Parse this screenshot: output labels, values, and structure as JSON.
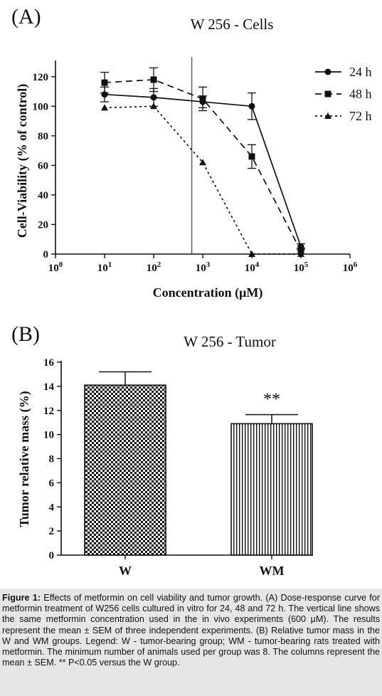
{
  "panelA": {
    "panel_label": "(A)",
    "title": "W 256 - Cells",
    "ylabel": "Cell-Viability (% of control)",
    "xlabel": "Concentration (μM)"
  },
  "panelB": {
    "panel_label": "(B)",
    "title": "W 256 - Tumor",
    "ylabel": "Tumor relative mass (%)",
    "significance": "**"
  },
  "caption": {
    "label": "Figure 1:",
    "text": "Effects of metformin on cell viability and tumor growth. (A) Dose-response curve for metformin treatment of W256 cells cultured in vitro for 24, 48 and 72 h. The vertical line shows the same metformin concentration used in the in vivo experiments (600 μM). The results represent the mean ± SEM of three independent experiments. (B) Relative tumor mass in the W and WM groups. Legend: W - tumor-bearing group; WM - tumor-bearing rats treated with metformin. The minimum number of animals used per group was 8. The columns represent the mean ± SEM. ** P<0.05 versus the W group."
  },
  "chart_data": [
    {
      "type": "line",
      "title": "W 256 - Cells",
      "xlabel": "Concentration (μM)",
      "ylabel": "Cell-Viability (% of control)",
      "x_scale": "log",
      "xlim": [
        1,
        1000000
      ],
      "ylim": [
        0,
        130
      ],
      "xticks": [
        {
          "value": 1,
          "base": "10",
          "exp": "0"
        },
        {
          "value": 10,
          "base": "10",
          "exp": "1"
        },
        {
          "value": 100,
          "base": "10",
          "exp": "2"
        },
        {
          "value": 1000,
          "base": "10",
          "exp": "3"
        },
        {
          "value": 10000,
          "base": "10",
          "exp": "4"
        },
        {
          "value": 100000,
          "base": "10",
          "exp": "5"
        },
        {
          "value": 1000000,
          "base": "10",
          "exp": "6"
        }
      ],
      "yticks": [
        0,
        20,
        40,
        60,
        80,
        100,
        120
      ],
      "reference_line_x": 600,
      "legend_position": "top-right",
      "x": [
        10,
        100,
        1000,
        10000,
        100000
      ],
      "series": [
        {
          "name": "24 h",
          "marker": "circle",
          "dash": "solid",
          "values": [
            108,
            106,
            103,
            100,
            5
          ],
          "errors": [
            5,
            6,
            4,
            9,
            2
          ]
        },
        {
          "name": "48 h",
          "marker": "square",
          "dash": "long-dash",
          "values": [
            116,
            118,
            105,
            66,
            2
          ],
          "errors": [
            7,
            8,
            8,
            8,
            2
          ]
        },
        {
          "name": "72 h",
          "marker": "triangle",
          "dash": "short-dash",
          "values": [
            99,
            100,
            62,
            0,
            0
          ],
          "errors": [
            0,
            0,
            0,
            0,
            0
          ]
        }
      ]
    },
    {
      "type": "bar",
      "title": "W 256 - Tumor",
      "ylabel": "Tumor relative mass (%)",
      "ylim": [
        0,
        16
      ],
      "yticks": [
        0,
        2,
        4,
        6,
        8,
        10,
        12,
        14,
        16
      ],
      "categories": [
        "W",
        "WM"
      ],
      "values": [
        14.1,
        10.9
      ],
      "errors": [
        1.1,
        0.75
      ],
      "patterns": [
        "checkerboard",
        "vertical-lines"
      ],
      "annotations": [
        "",
        "**"
      ]
    }
  ]
}
